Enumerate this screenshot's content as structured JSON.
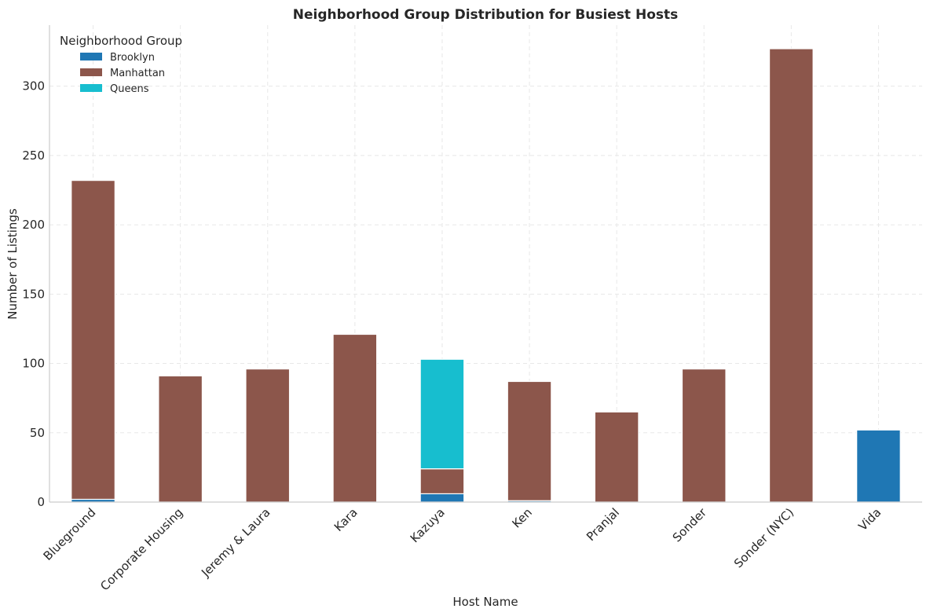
{
  "chart_data": {
    "type": "bar",
    "stacked": true,
    "title": "Neighborhood Group Distribution for Busiest Hosts",
    "xlabel": "Host Name",
    "ylabel": "Number of Listings",
    "ylim": [
      0,
      344
    ],
    "yticks": [
      0,
      50,
      100,
      150,
      200,
      250,
      300
    ],
    "grid": true,
    "legend_title": "Neighborhood Group",
    "legend_position": "top-left",
    "categories": [
      "Blueground",
      "Corporate Housing",
      "Jeremy & Laura",
      "Kara",
      "Kazuya",
      "Ken",
      "Pranjal",
      "Sonder",
      "Sonder (NYC)",
      "Vida"
    ],
    "series": [
      {
        "name": "Brooklyn",
        "color": "#1f77b4",
        "values": [
          2,
          0,
          0,
          0,
          6,
          1,
          0,
          0,
          0,
          52
        ]
      },
      {
        "name": "Manhattan",
        "color": "#8c564b",
        "values": [
          230,
          91,
          96,
          121,
          18,
          86,
          65,
          96,
          327,
          0
        ]
      },
      {
        "name": "Queens",
        "color": "#17becf",
        "values": [
          0,
          0,
          0,
          0,
          79,
          0,
          0,
          0,
          0,
          0
        ]
      }
    ]
  }
}
